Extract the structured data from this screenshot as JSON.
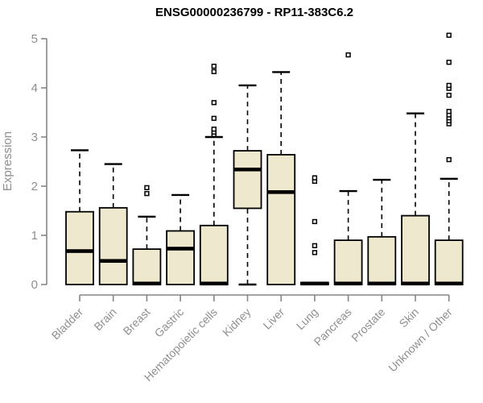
{
  "chart_data": {
    "type": "boxplot",
    "title": "ENSG00000236799 - RP11-383C6.2",
    "xlabel": "",
    "ylabel": "Expression",
    "ylim": [
      0,
      5
    ],
    "yticks": [
      0,
      1,
      2,
      3,
      4,
      5
    ],
    "grid": false,
    "categories": [
      "Bladder",
      "Brain",
      "Breast",
      "Gastric",
      "Hematopoietic cells",
      "Kidney",
      "Liver",
      "Lung",
      "Pancreas",
      "Prostate",
      "Skin",
      "Unknown / Other"
    ],
    "series": [
      {
        "name": "Bladder",
        "whisker_low": 0,
        "q1": 0,
        "median": 0.68,
        "q3": 1.48,
        "whisker_high": 2.73,
        "outliers": []
      },
      {
        "name": "Brain",
        "whisker_low": 0,
        "q1": 0,
        "median": 0.48,
        "q3": 1.56,
        "whisker_high": 2.45,
        "outliers": []
      },
      {
        "name": "Breast",
        "whisker_low": 0,
        "q1": 0,
        "median": 0.02,
        "q3": 0.72,
        "whisker_high": 1.38,
        "outliers": [
          1.85,
          1.97
        ]
      },
      {
        "name": "Gastric",
        "whisker_low": 0,
        "q1": 0,
        "median": 0.73,
        "q3": 1.09,
        "whisker_high": 1.82,
        "outliers": []
      },
      {
        "name": "Hematopoietic cells",
        "whisker_low": 0,
        "q1": 0,
        "median": 0.02,
        "q3": 1.2,
        "whisker_high": 3.0,
        "outliers": [
          3.05,
          3.1,
          3.16,
          3.38,
          3.7,
          4.33,
          4.44
        ]
      },
      {
        "name": "Kidney",
        "whisker_low": 0,
        "q1": 1.55,
        "median": 2.34,
        "q3": 2.72,
        "whisker_high": 4.05,
        "outliers": []
      },
      {
        "name": "Liver",
        "whisker_low": 0,
        "q1": 0,
        "median": 1.88,
        "q3": 2.64,
        "whisker_high": 4.32,
        "outliers": []
      },
      {
        "name": "Lung",
        "whisker_low": 0,
        "q1": 0,
        "median": 0.02,
        "q3": 0.04,
        "whisker_high": 0.04,
        "outliers": [
          0.65,
          0.79,
          1.28,
          2.1,
          2.17
        ]
      },
      {
        "name": "Pancreas",
        "whisker_low": 0,
        "q1": 0,
        "median": 0.02,
        "q3": 0.9,
        "whisker_high": 1.9,
        "outliers": [
          4.67
        ]
      },
      {
        "name": "Prostate",
        "whisker_low": 0,
        "q1": 0,
        "median": 0.02,
        "q3": 0.97,
        "whisker_high": 2.13,
        "outliers": []
      },
      {
        "name": "Skin",
        "whisker_low": 0,
        "q1": 0,
        "median": 0.02,
        "q3": 1.4,
        "whisker_high": 3.48,
        "outliers": []
      },
      {
        "name": "Unknown / Other",
        "whisker_low": 0,
        "q1": 0,
        "median": 0.02,
        "q3": 0.9,
        "whisker_high": 2.15,
        "outliers": [
          2.54,
          3.27,
          3.33,
          3.39,
          3.45,
          3.52,
          3.85,
          3.99,
          4.05,
          4.52,
          5.07
        ]
      }
    ],
    "colors": {
      "box_fill": "#EDE8CE",
      "box_stroke": "#000000",
      "median": "#000000",
      "whisker": "#000000",
      "outlier_stroke": "#000000",
      "outlier_fill": "#ffffff",
      "axis": "#858585",
      "tick_label": "#8f8f8f",
      "title": "#000000"
    },
    "legend": null
  }
}
